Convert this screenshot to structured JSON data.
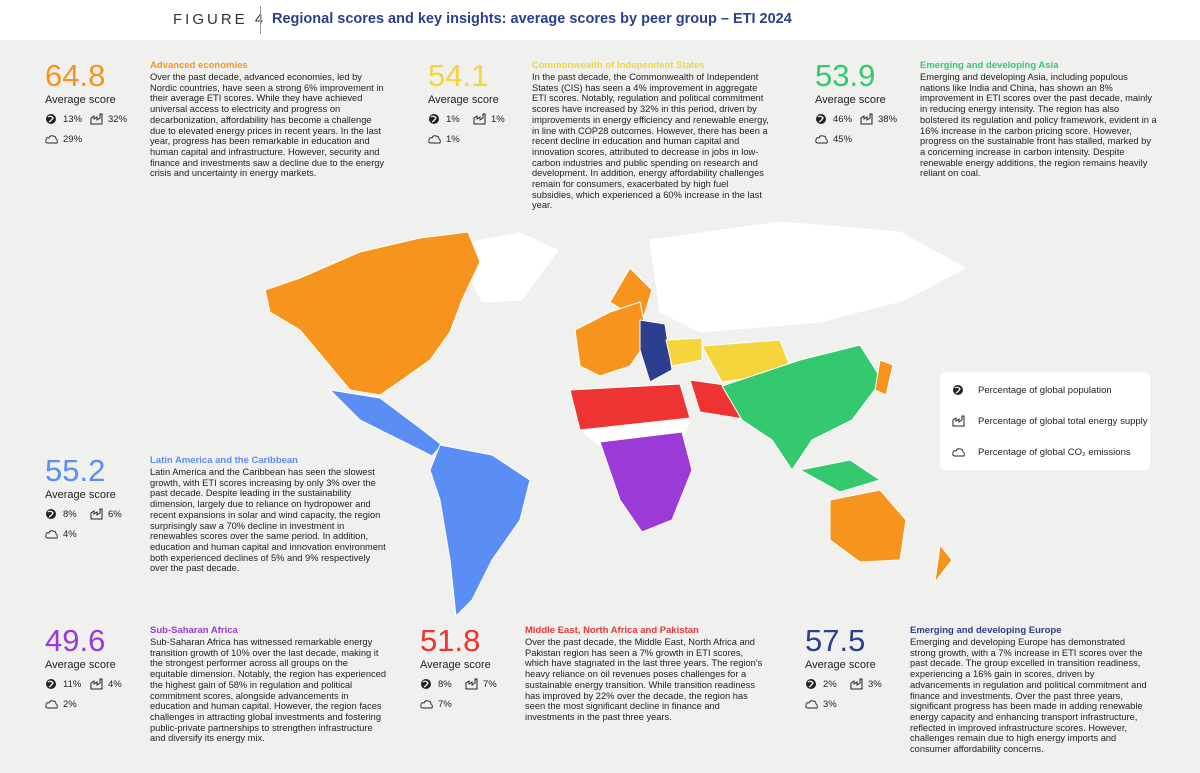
{
  "header": {
    "figure": "FIGURE 4",
    "title": "Regional scores and key insights: average scores by peer group – ETI 2024"
  },
  "legend": {
    "items": [
      {
        "icon": "population",
        "label": "Percentage of global population"
      },
      {
        "icon": "energy",
        "label": "Percentage of global total energy supply"
      },
      {
        "icon": "co2",
        "label": "Percentage of global CO₂ emissions"
      }
    ]
  },
  "regions": [
    {
      "name": "Advanced economies",
      "color": "#f7941d",
      "score": "64.8",
      "score_label": "Average score",
      "population": "13%",
      "energy": "32%",
      "co2": "29%",
      "text": "Over the past decade, advanced economies, led by Nordic countries, have seen a strong 6% improvement in their average ETI scores. While they have achieved universal access to electricity and progress on decarbonization, affordability has become a challenge due to elevated energy prices in recent years. In the last year, progress has been remarkable in education and human capital and infrastructure. However, security and finance and investments saw a decline due to the energy crisis and uncertainty in energy markets."
    },
    {
      "name": "Commonwealth of Independent States",
      "color": "#f5d43c",
      "score": "54.1",
      "score_label": "Average score",
      "population": "1%",
      "energy": "1%",
      "co2": "1%",
      "text": "In the past decade, the Commonwealth of Independent States (CIS) has seen a 4% improvement in aggregate ETI scores. Notably, regulation and political commitment scores have increased by 32% in this period, driven by improvements in energy efficiency and renewable energy, in line with COP28 outcomes. However, there has been a recent decline in education and human capital and innovation scores, attributed to decrease in jobs in low-carbon industries and public spending on research and development. In addition, energy affordability challenges remain for consumers, exacerbated by high fuel subsidies, which experienced a 60% increase in the last year."
    },
    {
      "name": "Emerging and developing Asia",
      "color": "#34c96e",
      "score": "53.9",
      "score_label": "Average score",
      "population": "46%",
      "energy": "38%",
      "co2": "45%",
      "text": "Emerging and developing Asia, including populous nations like India and China, has shown an 8% improvement in ETI scores over the past decade, mainly in reducing energy intensity. The region has also bolstered its regulation and policy framework, evident in a 16% increase in the carbon pricing score. However, progress on the sustainable front has stalled, marked by a concerning increase in carbon intensity. Despite renewable energy additions, the region remains heavily reliant on coal."
    },
    {
      "name": "Latin America and the Caribbean",
      "color": "#5b8ef5",
      "score": "55.2",
      "score_label": "Average score",
      "population": "8%",
      "energy": "6%",
      "co2": "4%",
      "text": "Latin America and the Caribbean has seen the slowest growth, with ETI scores increasing by only 3% over the past decade. Despite leading in the sustainability dimension, largely due to reliance on hydropower and recent expansions in solar and wind capacity, the region surprisingly saw a 70% decline in investment in renewables scores over the same period. In addition, education and human capital and innovation environment both experienced declines of 5% and 9% respectively over the past decade."
    },
    {
      "name": "Sub-Saharan Africa",
      "color": "#9b3ad6",
      "score": "49.6",
      "score_label": "Average score",
      "population": "11%",
      "energy": "4%",
      "co2": "2%",
      "text": "Sub-Saharan Africa has witnessed remarkable energy transition growth of 10% over the last decade, making it the strongest performer across all groups on the equitable dimension. Notably, the region has experienced the highest gain of 58% in regulation and political commitment scores, alongside advancements in education and human capital. However, the region faces challenges in attracting global investments and fostering public-private partnerships to strengthen infrastructure and diversify its energy mix."
    },
    {
      "name": "Middle East, North Africa and Pakistan",
      "color": "#ee3333",
      "score": "51.8",
      "score_label": "Average score",
      "population": "8%",
      "energy": "7%",
      "co2": "7%",
      "text": "Over the past decade, the Middle East, North Africa and Pakistan region has seen a 7% growth in ETI scores, which have stagnated in the last three years. The region's heavy reliance on oil revenues poses challenges for a sustainable energy transition. While transition readiness has improved by 22% over the decade, the region has seen the most significant decline in finance and investments in the past three years."
    },
    {
      "name": "Emerging and developing Europe",
      "color": "#2c3f8f",
      "score": "57.5",
      "score_label": "Average score",
      "population": "2%",
      "energy": "3%",
      "co2": "3%",
      "text": "Emerging and developing Europe has demonstrated strong growth, with a 7% increase in ETI scores over the past decade. The group excelled in transition readiness, experiencing a 16% gain in scores, driven by advancements in regulation and political commitment and finance and investments. Over the past three years, significant progress has been made in adding renewable energy capacity and enhancing transport infrastructure, reflected in improved infrastructure scores. However, challenges remain due to high energy imports and consumer affordability concerns."
    }
  ]
}
